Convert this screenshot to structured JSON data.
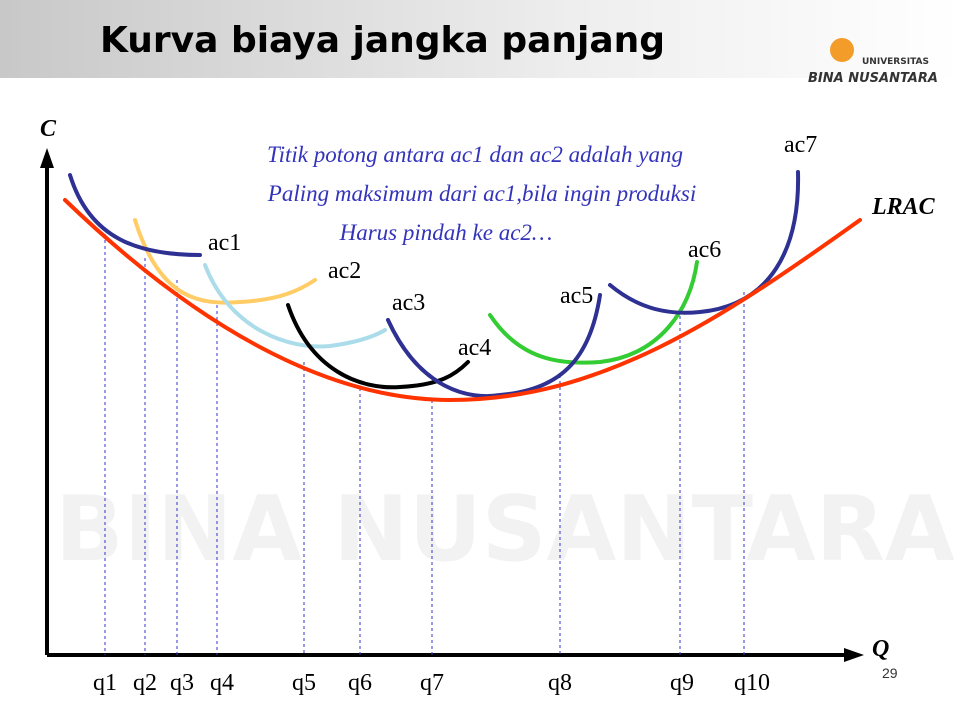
{
  "title": "Kurva biaya jangka panjang",
  "logo": {
    "line1": "UNIVERSITAS",
    "line2": "BINA NUSANTARA"
  },
  "axes": {
    "y": "C",
    "x": "Q"
  },
  "curves": [
    "ac1",
    "ac2",
    "ac3",
    "ac4",
    "ac5",
    "ac6",
    "ac7"
  ],
  "lrac": "LRAC",
  "quantities": [
    "q1",
    "q2",
    "q3",
    "q4",
    "q5",
    "q6",
    "q7",
    "q8",
    "q9",
    "q10"
  ],
  "note": [
    "Titik potong antara ac1 dan ac2 adalah yang",
    "Paling maksimum dari ac1,bila ingin produksi",
    "Harus pindah ke ac2…"
  ],
  "page_number": "29"
}
